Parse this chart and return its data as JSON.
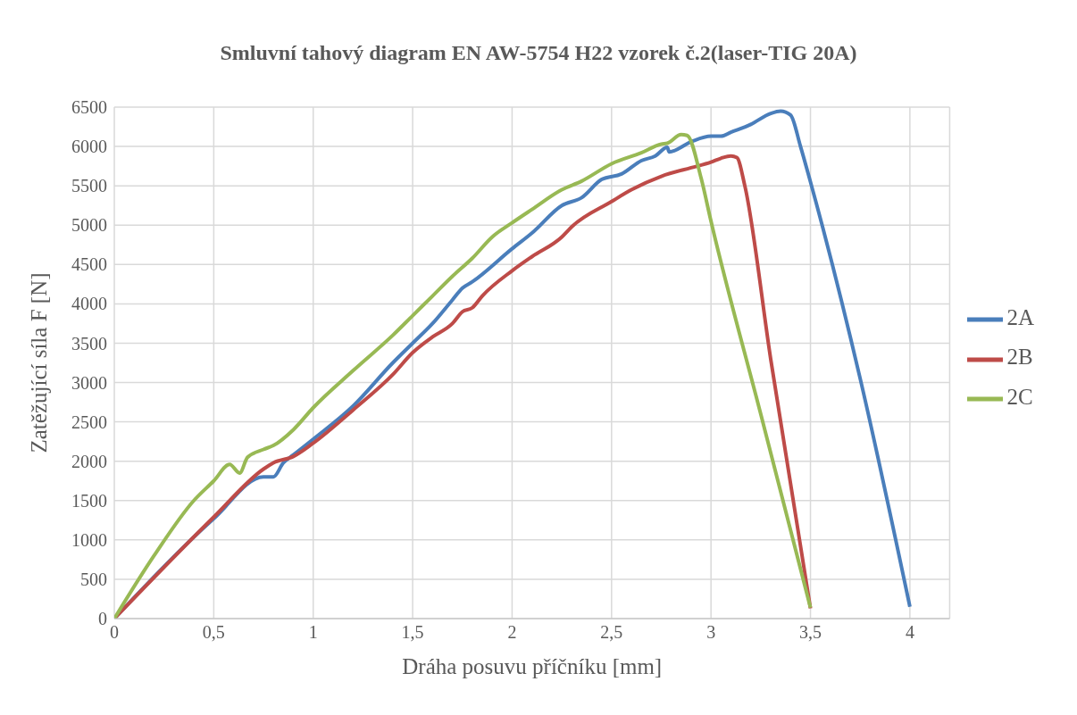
{
  "chart_data": {
    "type": "line",
    "title": "Smluvní tahový diagram EN AW-5754 H22 vzorek č.2(laser-TIG 20A)",
    "xlabel": "Dráha posuvu příčníku [mm]",
    "ylabel": "Zatěžující síla F [N]",
    "xlim": [
      0,
      4.2
    ],
    "xticks": [
      0,
      {
        "value": 0.5,
        "label": "0,5"
      },
      1,
      {
        "value": 1.5,
        "label": "1,5"
      },
      2,
      {
        "value": 2.5,
        "label": "2,5"
      },
      3,
      {
        "value": 3.5,
        "label": "3,5"
      },
      4
    ],
    "ylim": [
      0,
      6500
    ],
    "yticks": [
      0,
      500,
      1000,
      1500,
      2000,
      2500,
      3000,
      3500,
      4000,
      4500,
      5000,
      5500,
      6000,
      6500
    ],
    "grid": true,
    "legend": "right",
    "marker": "none",
    "line_style": "solid",
    "series": [
      {
        "name": "2A",
        "color": "#4a7ebb",
        "x": [
          0,
          0.5,
          0.75,
          0.8,
          0.85,
          0.9,
          1.0,
          1.2,
          1.4,
          1.5,
          1.6,
          1.7,
          1.75,
          1.8,
          2.0,
          2.1,
          2.25,
          2.35,
          2.45,
          2.55,
          2.65,
          2.72,
          2.78,
          2.79,
          2.9,
          3.0,
          3.05,
          3.1,
          3.2,
          3.3,
          3.35,
          3.4,
          3.45,
          3.5,
          3.75,
          4.0
        ],
        "values": [
          0,
          1270,
          1800,
          1800,
          1980,
          2080,
          2280,
          2700,
          3250,
          3500,
          3750,
          4050,
          4200,
          4280,
          4700,
          4900,
          5250,
          5350,
          5580,
          5650,
          5820,
          5880,
          5990,
          5930,
          6060,
          6130,
          6130,
          6180,
          6280,
          6420,
          6450,
          6400,
          6000,
          5550,
          3050,
          150
        ]
      },
      {
        "name": "2B",
        "color": "#be4b48",
        "x": [
          0,
          0.5,
          0.75,
          0.8,
          0.9,
          1.0,
          1.2,
          1.4,
          1.5,
          1.6,
          1.7,
          1.75,
          1.8,
          1.85,
          2.0,
          2.1,
          2.25,
          2.3,
          2.5,
          2.6,
          2.75,
          2.9,
          3.0,
          3.05,
          3.1,
          3.13,
          3.17,
          3.3,
          3.5
        ],
        "values": [
          0,
          1290,
          1900,
          1980,
          2060,
          2230,
          2650,
          3100,
          3380,
          3580,
          3750,
          3900,
          3950,
          4100,
          4420,
          4600,
          4850,
          4980,
          5300,
          5450,
          5620,
          5730,
          5800,
          5850,
          5880,
          5860,
          5500,
          3300,
          130
        ]
      },
      {
        "name": "2C",
        "color": "#98b954",
        "x": [
          0,
          0.2,
          0.4,
          0.5,
          0.58,
          0.63,
          0.67,
          0.75,
          0.8,
          0.9,
          1.0,
          1.2,
          1.4,
          1.5,
          1.6,
          1.7,
          1.8,
          1.9,
          2.0,
          2.1,
          2.25,
          2.35,
          2.5,
          2.65,
          2.75,
          2.78,
          2.85,
          2.88,
          2.95,
          3.0,
          3.25,
          3.5
        ],
        "values": [
          0,
          800,
          1500,
          1750,
          1960,
          1850,
          2050,
          2150,
          2200,
          2400,
          2680,
          3150,
          3600,
          3850,
          4100,
          4350,
          4580,
          4850,
          5030,
          5200,
          5450,
          5560,
          5780,
          5920,
          6030,
          6040,
          6150,
          6140,
          5600,
          5050,
          2600,
          140
        ]
      }
    ]
  }
}
